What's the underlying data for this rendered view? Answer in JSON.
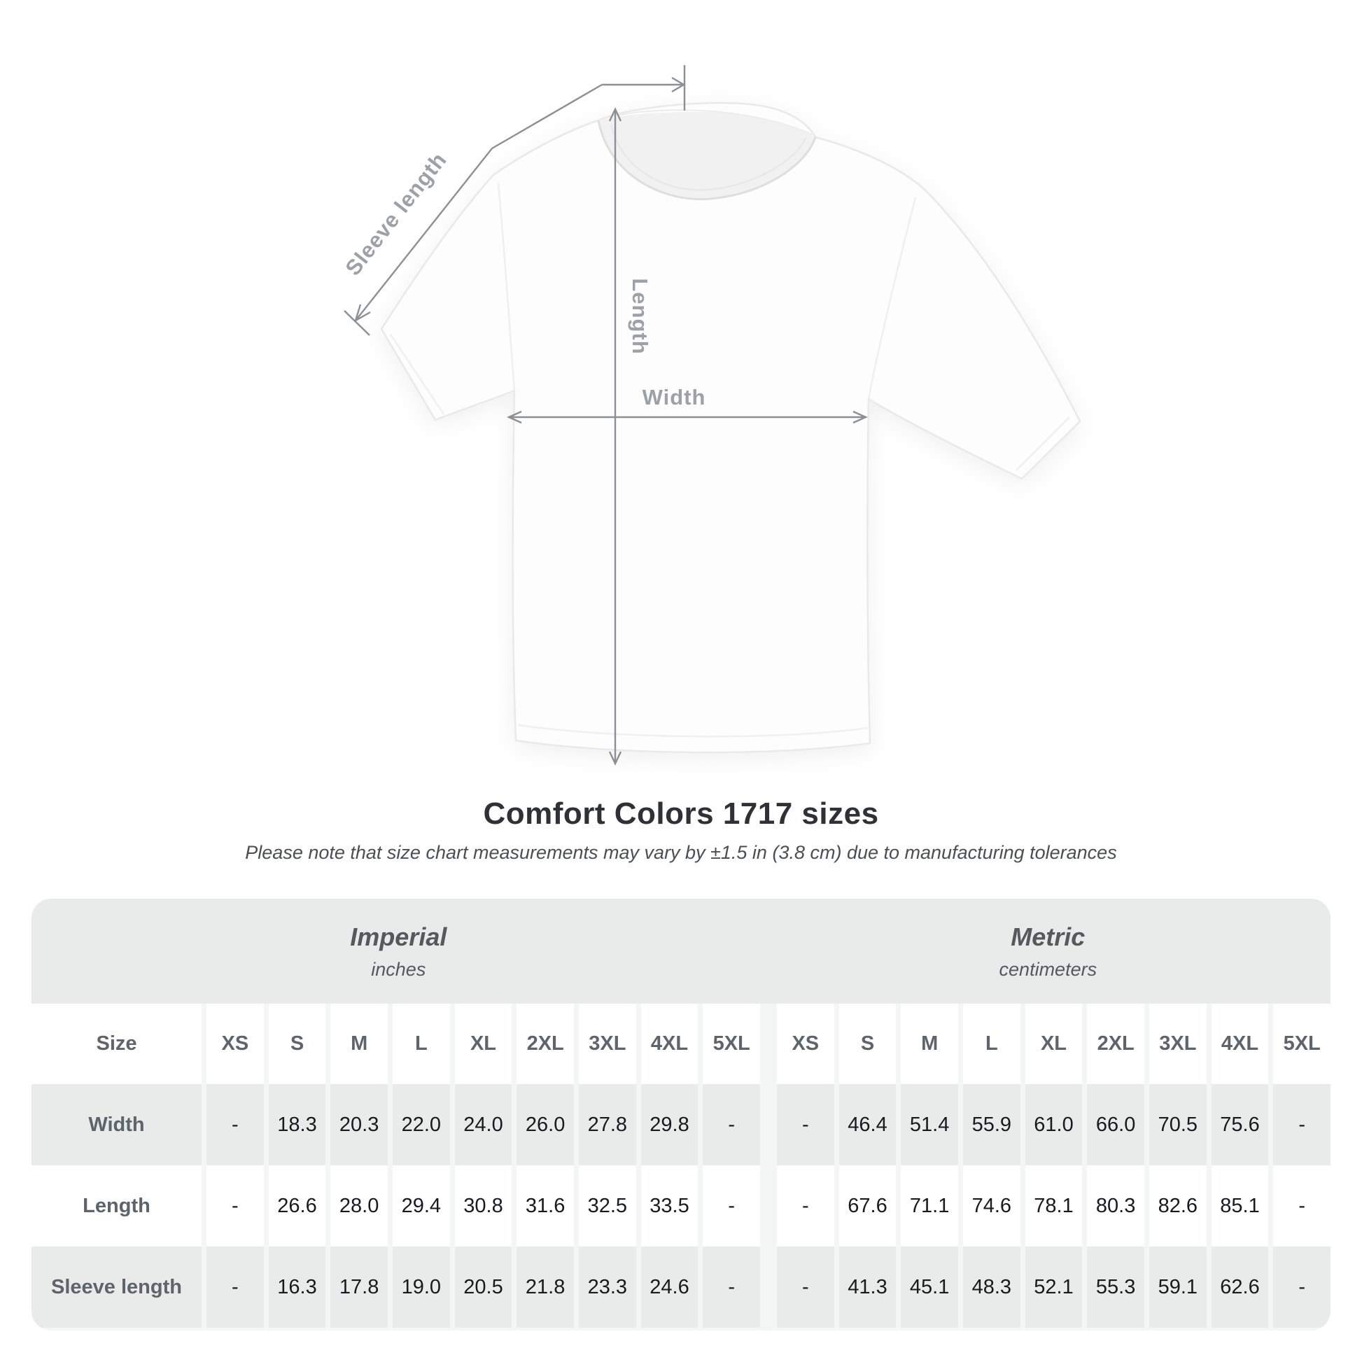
{
  "diagram": {
    "sleeve_length_label": "Sleeve length",
    "length_label": "Length",
    "width_label": "Width"
  },
  "title": "Comfort Colors 1717 sizes",
  "subtitle": "Please note that size chart measurements may vary by ±1.5 in (3.8 cm) due to manufacturing tolerances",
  "table": {
    "size_label": "Size",
    "groups": [
      {
        "name": "Imperial",
        "unit": "inches"
      },
      {
        "name": "Metric",
        "unit": "centimeters"
      }
    ],
    "sizes": [
      "XS",
      "S",
      "M",
      "L",
      "XL",
      "2XL",
      "3XL",
      "4XL",
      "5XL"
    ],
    "rows": [
      {
        "label": "Width",
        "imperial": [
          "-",
          "18.3",
          "20.3",
          "22.0",
          "24.0",
          "26.0",
          "27.8",
          "29.8",
          "-"
        ],
        "metric": [
          "-",
          "46.4",
          "51.4",
          "55.9",
          "61.0",
          "66.0",
          "70.5",
          "75.6",
          "-"
        ]
      },
      {
        "label": "Length",
        "imperial": [
          "-",
          "26.6",
          "28.0",
          "29.4",
          "30.8",
          "31.6",
          "32.5",
          "33.5",
          "-"
        ],
        "metric": [
          "-",
          "67.6",
          "71.1",
          "74.6",
          "78.1",
          "80.3",
          "82.6",
          "85.1",
          "-"
        ]
      },
      {
        "label": "Sleeve length",
        "imperial": [
          "-",
          "16.3",
          "17.8",
          "19.0",
          "20.5",
          "21.8",
          "23.3",
          "24.6",
          "-"
        ],
        "metric": [
          "-",
          "41.3",
          "45.1",
          "48.3",
          "52.1",
          "55.3",
          "59.1",
          "62.6",
          "-"
        ]
      }
    ]
  },
  "colors": {
    "band_gray": "#e9eaea",
    "row_gray": "#e9eaea",
    "separator": "#f4f5f5",
    "measure_line": "#8b9095",
    "measure_label": "#9ca1a7",
    "title_text": "#2e3135",
    "value_text": "#191a1c",
    "header_text": "#5e646b"
  },
  "chart_data": {
    "type": "table",
    "title": "Comfort Colors 1717 sizes",
    "note": "Please note that size chart measurements may vary by ±1.5 in (3.8 cm) due to manufacturing tolerances",
    "column_groups": [
      "Imperial (inches)",
      "Metric (centimeters)"
    ],
    "columns": [
      "XS",
      "S",
      "M",
      "L",
      "XL",
      "2XL",
      "3XL",
      "4XL",
      "5XL"
    ],
    "rows": [
      {
        "measurement": "Width",
        "imperial_in": [
          null,
          18.3,
          20.3,
          22.0,
          24.0,
          26.0,
          27.8,
          29.8,
          null
        ],
        "metric_cm": [
          null,
          46.4,
          51.4,
          55.9,
          61.0,
          66.0,
          70.5,
          75.6,
          null
        ]
      },
      {
        "measurement": "Length",
        "imperial_in": [
          null,
          26.6,
          28.0,
          29.4,
          30.8,
          31.6,
          32.5,
          33.5,
          null
        ],
        "metric_cm": [
          null,
          67.6,
          71.1,
          74.6,
          78.1,
          80.3,
          82.6,
          85.1,
          null
        ]
      },
      {
        "measurement": "Sleeve length",
        "imperial_in": [
          null,
          16.3,
          17.8,
          19.0,
          20.5,
          21.8,
          23.3,
          24.6,
          null
        ],
        "metric_cm": [
          null,
          41.3,
          45.1,
          48.3,
          52.1,
          55.3,
          59.1,
          62.6,
          null
        ]
      }
    ]
  }
}
